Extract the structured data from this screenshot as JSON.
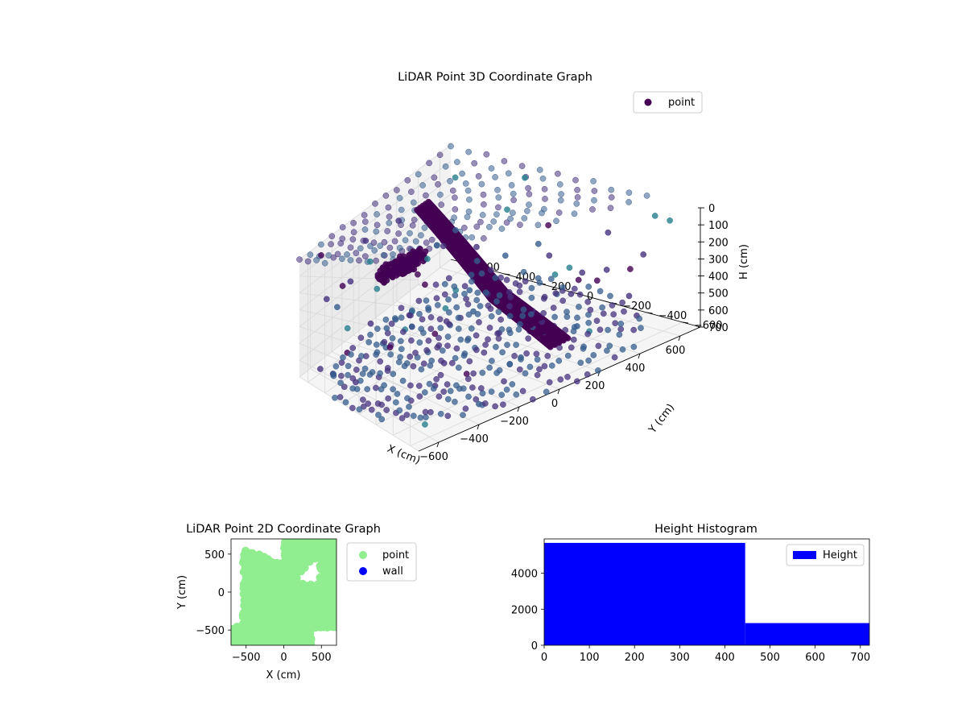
{
  "chart_data": [
    {
      "type": "scatter",
      "title": "LiDAR Point 3D Coordinate Graph",
      "xlabel": "X (cm)",
      "ylabel": "Y (cm)",
      "zlabel": "H (cm)",
      "xlim": [
        -700,
        700
      ],
      "ylim": [
        -700,
        700
      ],
      "zlim": [
        0,
        700
      ],
      "z_inverted": true,
      "x_ticks": [
        -600,
        -400,
        -200,
        0,
        200,
        400,
        600
      ],
      "x_tick_labels": [
        "−600",
        "−400",
        "−200",
        "0",
        "200",
        "400",
        "600"
      ],
      "y_ticks": [
        -600,
        -400,
        -200,
        0,
        200,
        400,
        600
      ],
      "y_tick_labels": [
        "−600",
        "−400",
        "−200",
        "0",
        "200",
        "400",
        "600"
      ],
      "z_ticks": [
        0,
        100,
        200,
        300,
        400,
        500,
        600,
        700
      ],
      "z_tick_labels": [
        "0",
        "100",
        "200",
        "300",
        "400",
        "500",
        "600",
        "700"
      ],
      "grid": true,
      "legend": {
        "placement": "top-right",
        "entries": [
          {
            "label": "point",
            "color": "#440154"
          }
        ]
      },
      "colormap": "viridis",
      "series": [
        {
          "name": "point",
          "clusters": [
            {
              "kind": "floor",
              "h": 700,
              "x_range": [
                -700,
                700
              ],
              "y_range": [
                -700,
                600
              ]
            },
            {
              "kind": "ceiling",
              "h": 0,
              "x_range": [
                -700,
                700
              ],
              "y_range": [
                -400,
                700
              ]
            },
            {
              "kind": "stair",
              "x": 300,
              "y_range": [
                -300,
                100
              ],
              "h_range": [
                550,
                700
              ]
            },
            {
              "kind": "stair",
              "x": 300,
              "y_range": [
                100,
                600
              ],
              "h_range": [
                150,
                550
              ]
            },
            {
              "kind": "blob",
              "x": -150,
              "y": 350,
              "h": 250
            }
          ]
        }
      ]
    },
    {
      "type": "scatter",
      "title": "LiDAR Point 2D Coordinate Graph",
      "xlabel": "X (cm)",
      "ylabel": "Y (cm)",
      "xlim": [
        -700,
        700
      ],
      "ylim": [
        -700,
        700
      ],
      "x_ticks": [
        -500,
        0,
        500
      ],
      "x_tick_labels": [
        "−500",
        "0",
        "500"
      ],
      "y_ticks": [
        -500,
        0,
        500
      ],
      "y_tick_labels": [
        "−500",
        "0",
        "500"
      ],
      "legend": {
        "placement": "outside-right",
        "entries": [
          {
            "label": "point",
            "color": "#90ee90"
          },
          {
            "label": "wall",
            "color": "#0000ff"
          }
        ]
      },
      "series": [
        {
          "name": "point",
          "color": "#90ee90"
        },
        {
          "name": "wall",
          "color": "#0000ff"
        }
      ]
    },
    {
      "type": "bar",
      "title": "Height Histogram",
      "xlim": [
        0,
        720
      ],
      "ylim": [
        0,
        5900
      ],
      "x_ticks": [
        0,
        100,
        200,
        300,
        400,
        500,
        600,
        700
      ],
      "x_tick_labels": [
        "0",
        "100",
        "200",
        "300",
        "400",
        "500",
        "600",
        "700"
      ],
      "y_ticks": [
        0,
        2000,
        4000
      ],
      "y_tick_labels": [
        "0",
        "2000",
        "4000"
      ],
      "legend": {
        "placement": "top-right",
        "entries": [
          {
            "label": "Height",
            "color": "#0000ff"
          }
        ]
      },
      "bins": [
        {
          "start": 0,
          "end": 445,
          "count": 5680
        },
        {
          "start": 445,
          "end": 720,
          "count": 1230
        }
      ],
      "bar_color": "#0000ff"
    }
  ]
}
